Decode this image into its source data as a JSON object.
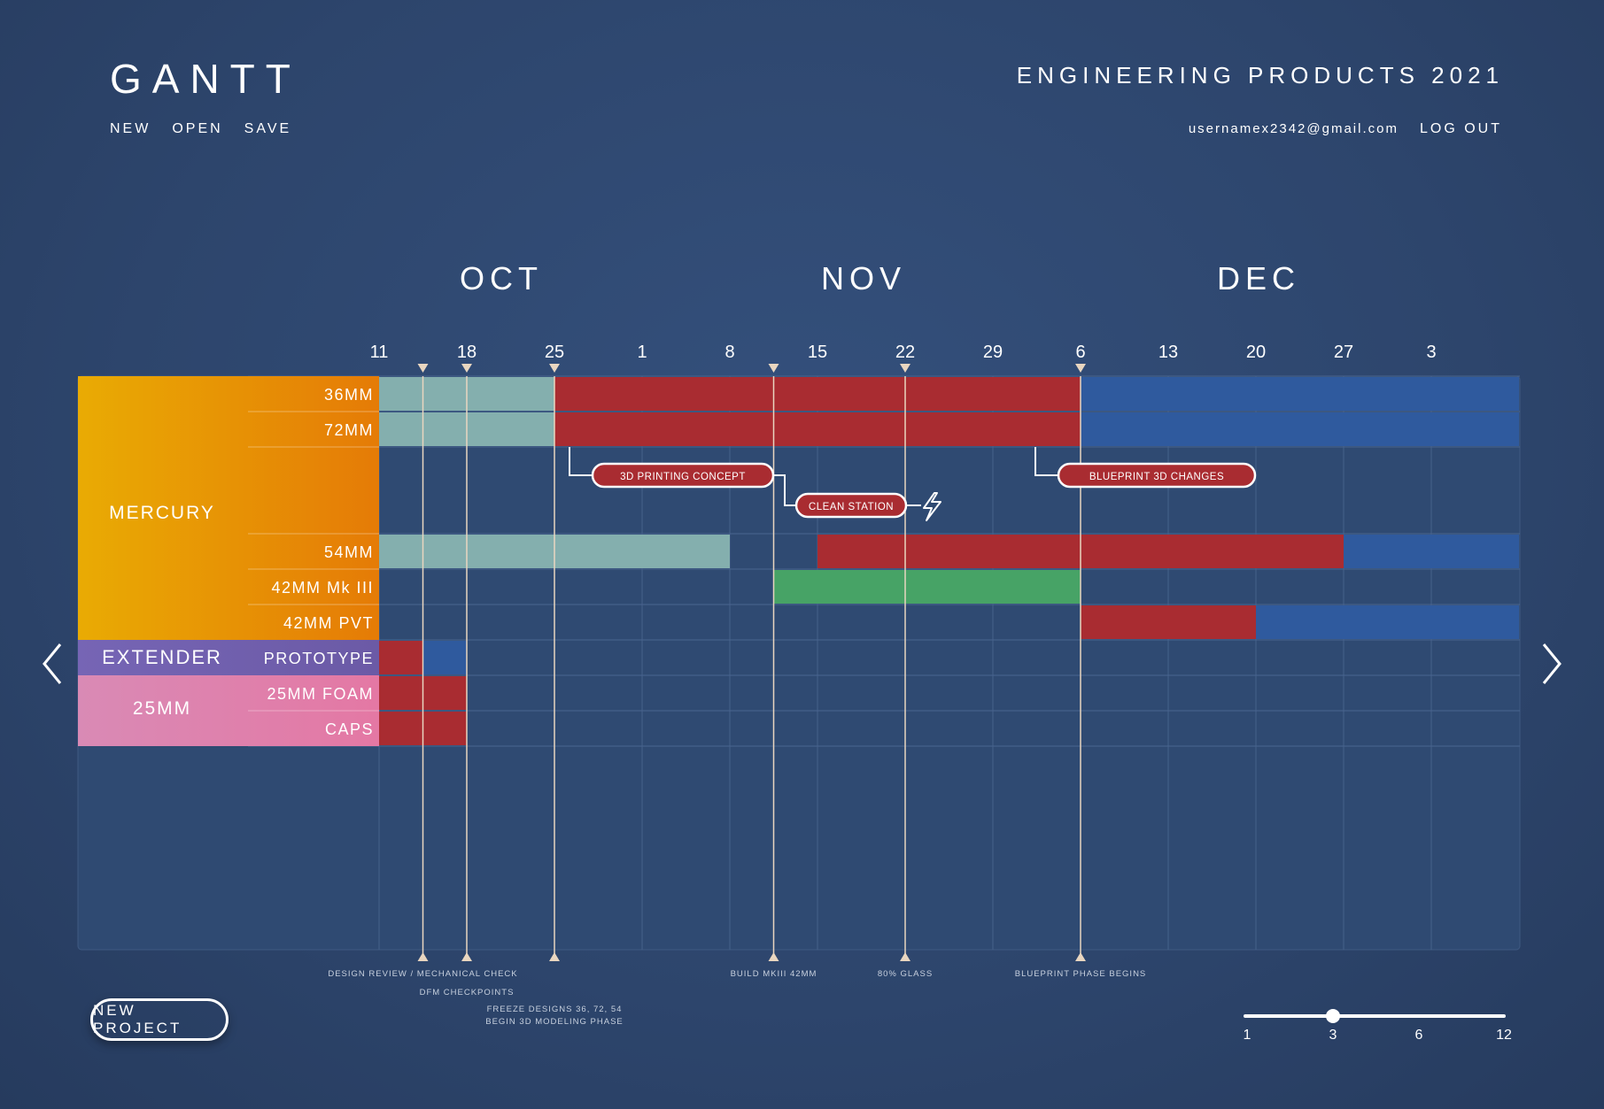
{
  "header": {
    "app_title": "GANTT",
    "menu": [
      "NEW",
      "OPEN",
      "SAVE"
    ],
    "project_title": "ENGINEERING PRODUCTS 2021",
    "user_email": "usernamex2342@gmail.com",
    "logout_label": "LOG OUT"
  },
  "chart_data": {
    "type": "gantt",
    "months": [
      "OCT",
      "NOV",
      "DEC"
    ],
    "week_labels": [
      "11",
      "18",
      "25",
      "1",
      "8",
      "15",
      "22",
      "29",
      "6",
      "13",
      "20",
      "27",
      "3"
    ],
    "groups": [
      {
        "name": "MERCURY",
        "rows": [
          "36MM",
          "72MM",
          "",
          "54MM",
          "42MM Mk III",
          "42MM PVT"
        ]
      },
      {
        "name": "EXTENDER",
        "rows": [
          "PROTOTYPE"
        ]
      },
      {
        "name": "25MM",
        "rows": [
          "25MM FOAM",
          "CAPS"
        ]
      }
    ],
    "tasks": [
      {
        "row": "36MM",
        "start": 0,
        "end": 2,
        "status": "planned"
      },
      {
        "row": "36MM",
        "start": 2,
        "end": 8,
        "status": "in-progress"
      },
      {
        "row": "36MM",
        "start": 8,
        "end": 13,
        "status": "scheduled"
      },
      {
        "row": "72MM",
        "start": 0,
        "end": 2,
        "status": "planned"
      },
      {
        "row": "72MM",
        "start": 2,
        "end": 8,
        "status": "in-progress"
      },
      {
        "row": "72MM",
        "start": 8,
        "end": 13,
        "status": "scheduled"
      },
      {
        "row": "54MM",
        "start": 0,
        "end": 4,
        "status": "planned"
      },
      {
        "row": "54MM",
        "start": 5,
        "end": 11,
        "status": "in-progress"
      },
      {
        "row": "54MM",
        "start": 11,
        "end": 13,
        "status": "scheduled"
      },
      {
        "row": "42MM Mk III",
        "start": 4.5,
        "end": 8,
        "status": "complete"
      },
      {
        "row": "42MM PVT",
        "start": 8,
        "end": 10,
        "status": "in-progress"
      },
      {
        "row": "42MM PVT",
        "start": 10,
        "end": 13,
        "status": "scheduled"
      },
      {
        "row": "PROTOTYPE",
        "start": 0,
        "end": 0.5,
        "status": "in-progress"
      },
      {
        "row": "PROTOTYPE",
        "start": 0.5,
        "end": 1,
        "status": "scheduled"
      },
      {
        "row": "25MM FOAM",
        "start": 0,
        "end": 1,
        "status": "in-progress"
      },
      {
        "row": "CAPS",
        "start": 0,
        "end": 1,
        "status": "in-progress"
      }
    ],
    "callouts": [
      {
        "label": "3D PRINTING CONCEPT",
        "at": 2
      },
      {
        "label": "CLEAN STATION",
        "at": 4.5,
        "icon": "lightning-icon"
      },
      {
        "label": "BLUEPRINT 3D CHANGES",
        "at": 7.5
      }
    ],
    "milestones": [
      {
        "at": 0.5,
        "labels": [
          "DESIGN REVIEW / MECHANICAL CHECK"
        ]
      },
      {
        "at": 1,
        "labels": [
          "DFM CHECKPOINTS"
        ]
      },
      {
        "at": 2,
        "labels": [
          "FREEZE DESIGNS 36, 72, 54",
          "BEGIN 3D MODELING PHASE"
        ]
      },
      {
        "at": 4.5,
        "labels": [
          "BUILD MKIII 42MM"
        ]
      },
      {
        "at": 6,
        "labels": [
          "80% GLASS"
        ]
      },
      {
        "at": 8,
        "labels": [
          "BLUEPRINT PHASE BEGINS"
        ]
      }
    ],
    "colors": {
      "planned": "#84afae",
      "in-progress": "#a92c31",
      "scheduled": "#2f5a9e",
      "complete": "#47a366",
      "mercury": "#e79a0b",
      "extender": "#7a67b5",
      "25mm": "#e27fa9"
    }
  },
  "footer": {
    "new_project_label": "NEW PROJECT",
    "zoom_options": [
      "1",
      "3",
      "6",
      "12"
    ],
    "zoom_selected": "3"
  }
}
